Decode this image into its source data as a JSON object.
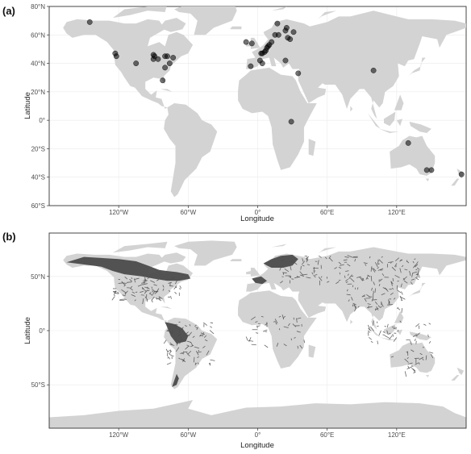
{
  "panels": [
    {
      "label": "(a)",
      "xlabel": "Longitude",
      "ylabel": "Latitude",
      "xticks": [
        {
          "lon": -120,
          "label": "120°W"
        },
        {
          "lon": -60,
          "label": "60°W"
        },
        {
          "lon": 0,
          "label": "0°"
        },
        {
          "lon": 60,
          "label": "60°E"
        },
        {
          "lon": 120,
          "label": "120°E"
        }
      ],
      "yticks": [
        {
          "lat": 80,
          "label": "80°N"
        },
        {
          "lat": 60,
          "label": "60°N"
        },
        {
          "lat": 40,
          "label": "40°N"
        },
        {
          "lat": 20,
          "label": "20°N"
        },
        {
          "lat": 0,
          "label": "0°"
        },
        {
          "lat": -20,
          "label": "20°S"
        },
        {
          "lat": -40,
          "label": "40°S"
        },
        {
          "lat": -60,
          "label": "60°S"
        }
      ],
      "lon_range": [
        -180,
        180
      ],
      "lat_range": [
        -60,
        80
      ],
      "point_color": "#000000",
      "land_color": "#d3d3d3",
      "points": [
        [
          -145,
          69
        ],
        [
          -123,
          47
        ],
        [
          -122,
          45
        ],
        [
          -105,
          40
        ],
        [
          -90,
          46
        ],
        [
          -89,
          45
        ],
        [
          -90,
          43
        ],
        [
          -86,
          43
        ],
        [
          -80,
          45
        ],
        [
          -78,
          45
        ],
        [
          -76,
          40
        ],
        [
          -73,
          44
        ],
        [
          -80,
          37
        ],
        [
          -82,
          28
        ],
        [
          -10,
          55
        ],
        [
          -5,
          54
        ],
        [
          -6,
          38
        ],
        [
          2,
          42
        ],
        [
          3,
          47
        ],
        [
          4,
          47
        ],
        [
          6,
          48
        ],
        [
          7,
          49
        ],
        [
          8,
          51
        ],
        [
          9,
          52
        ],
        [
          10,
          53
        ],
        [
          12,
          55
        ],
        [
          15,
          60
        ],
        [
          18,
          60
        ],
        [
          17,
          68
        ],
        [
          25,
          65
        ],
        [
          28,
          57
        ],
        [
          24,
          63
        ],
        [
          26,
          58
        ],
        [
          24,
          42
        ],
        [
          31,
          62
        ],
        [
          35,
          33
        ],
        [
          100,
          35
        ],
        [
          29,
          -1
        ],
        [
          130,
          -16
        ],
        [
          146,
          -35
        ],
        [
          150,
          -35
        ],
        [
          176,
          -38
        ],
        [
          4,
          40
        ]
      ]
    },
    {
      "label": "(b)",
      "xlabel": "Longitude",
      "ylabel": "Latitude",
      "xticks": [
        {
          "lon": -120,
          "label": "120°W"
        },
        {
          "lon": -60,
          "label": "60°W"
        },
        {
          "lon": 0,
          "label": "0°"
        },
        {
          "lon": 60,
          "label": "60°E"
        },
        {
          "lon": 120,
          "label": "120°E"
        }
      ],
      "yticks": [
        {
          "lat": 50,
          "label": "50°N"
        },
        {
          "lat": 0,
          "label": "0°"
        },
        {
          "lat": -50,
          "label": "50°S"
        }
      ],
      "lon_range": [
        -180,
        180
      ],
      "lat_range": [
        -90,
        90
      ],
      "land_color": "#d3d3d3",
      "overlay_color": "#4b4b4b"
    }
  ]
}
